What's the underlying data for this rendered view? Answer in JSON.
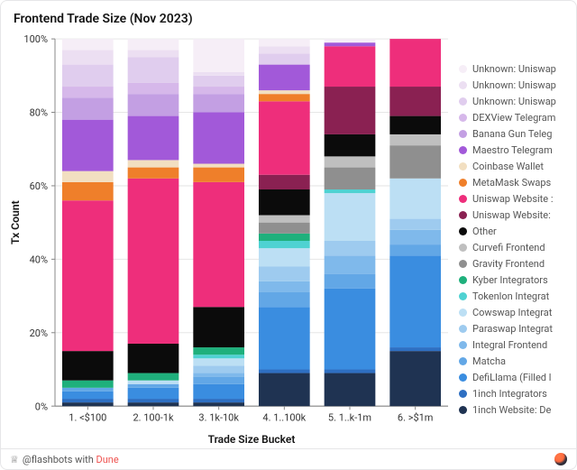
{
  "chart": {
    "type": "stacked-bar-100pct",
    "title": "Frontend Trade Size (Nov 2023)",
    "xlabel": "Trade Size Bucket",
    "ylabel": "Tx Count",
    "ylim": [
      0,
      100
    ],
    "ytick_step": 20,
    "ytick_format_suffix": "%",
    "background_color": "#ffffff",
    "grid_color": "#e6e6e6",
    "bar_width": 0.78,
    "font": {
      "title_size": 14,
      "title_weight": 600,
      "axis_label_size": 12,
      "tick_size": 11,
      "legend_size": 11
    },
    "categories": [
      "1. <$100",
      "2. 100-1k",
      "3. 1k-10k",
      "4. 1..100k",
      "5. 1..k-1m",
      "6. >$1m"
    ],
    "series": [
      {
        "key": "unk_uw_1",
        "label": "Unknown: Uniswap",
        "color": "#f6eef7"
      },
      {
        "key": "unk_uw_2",
        "label": "Unknown: Uniswap",
        "color": "#ecdff2"
      },
      {
        "key": "unk_uw_3",
        "label": "Unknown: Uniswap",
        "color": "#e0cdee"
      },
      {
        "key": "dexview",
        "label": "DEXView Telegram",
        "color": "#d6b8ea"
      },
      {
        "key": "banana",
        "label": "Banana Gun Teleg",
        "color": "#c39fe3"
      },
      {
        "key": "maestro",
        "label": "Maestro Telegram",
        "color": "#a259d9"
      },
      {
        "key": "coinbase",
        "label": "Coinbase Wallet",
        "color": "#f2dfc1"
      },
      {
        "key": "metamask",
        "label": "MetaMask Swaps",
        "color": "#ef7f2a"
      },
      {
        "key": "uw_a",
        "label": "Uniswap Website :",
        "color": "#ee2e7b"
      },
      {
        "key": "uw_b",
        "label": "Uniswap Website:",
        "color": "#8a2152"
      },
      {
        "key": "other",
        "label": "Other",
        "color": "#0b0b0b"
      },
      {
        "key": "curve",
        "label": "Curvefi Frontend",
        "color": "#bfbfbf"
      },
      {
        "key": "gravity",
        "label": "Gravity Frontend",
        "color": "#8f8f8f"
      },
      {
        "key": "kyber",
        "label": "Kyber Integrators",
        "color": "#1fb07c"
      },
      {
        "key": "tokenlon",
        "label": "Tokenlon Integrat",
        "color": "#4fd2d2"
      },
      {
        "key": "cowswap",
        "label": "Cowswap Integrat",
        "color": "#bcdff4"
      },
      {
        "key": "paraswap",
        "label": "Paraswap Integrat",
        "color": "#9ecbef"
      },
      {
        "key": "integral",
        "label": "Integral Frontend",
        "color": "#7fb9eb"
      },
      {
        "key": "matcha",
        "label": "Matcha",
        "color": "#62a7e6"
      },
      {
        "key": "defillama",
        "label": "DefiLlama (Filled l",
        "color": "#3a8de0"
      },
      {
        "key": "1inch_int",
        "label": "1inch Integrators",
        "color": "#2e6fc2"
      },
      {
        "key": "1inch_web",
        "label": "1inch Website: De",
        "color": "#1f3352"
      }
    ],
    "data": {
      "unk_uw_1": [
        3,
        3,
        9,
        2,
        1,
        0
      ],
      "unk_uw_2": [
        4,
        2,
        1,
        2,
        0,
        0
      ],
      "unk_uw_3": [
        6,
        7,
        3,
        3,
        0,
        0
      ],
      "dexview": [
        3,
        3,
        2,
        0,
        0,
        0
      ],
      "banana": [
        6,
        6,
        5,
        0,
        0,
        0
      ],
      "maestro": [
        14,
        12,
        14,
        7,
        1,
        0
      ],
      "coinbase": [
        3,
        2,
        1,
        1,
        0,
        0
      ],
      "metamask": [
        5,
        3,
        4,
        2,
        0,
        0
      ],
      "uw_a": [
        41,
        45,
        34,
        20,
        11,
        13
      ],
      "uw_b": [
        0,
        0,
        0,
        4,
        13,
        8
      ],
      "other": [
        8,
        8,
        11,
        7,
        6,
        5
      ],
      "curve": [
        0,
        0,
        0,
        2,
        3,
        3
      ],
      "gravity": [
        0,
        0,
        0,
        3,
        6,
        9
      ],
      "kyber": [
        2,
        2,
        2,
        2,
        0,
        0
      ],
      "tokenlon": [
        0,
        0,
        1,
        2,
        1,
        0
      ],
      "cowswap": [
        0,
        1,
        2,
        5,
        13,
        11
      ],
      "paraswap": [
        0,
        0,
        2,
        4,
        4,
        3
      ],
      "integral": [
        0,
        0,
        1,
        3,
        5,
        4
      ],
      "matcha": [
        1,
        1,
        2,
        4,
        4,
        3
      ],
      "defillama": [
        2,
        3,
        4,
        17,
        22,
        25
      ],
      "1inch_int": [
        1,
        1,
        1,
        1,
        1,
        1
      ],
      "1inch_web": [
        1,
        1,
        1,
        9,
        9,
        15
      ]
    }
  },
  "footer": {
    "prefix": "@flashbots with ",
    "link_text": "Dune",
    "crown_glyph": "♕"
  }
}
